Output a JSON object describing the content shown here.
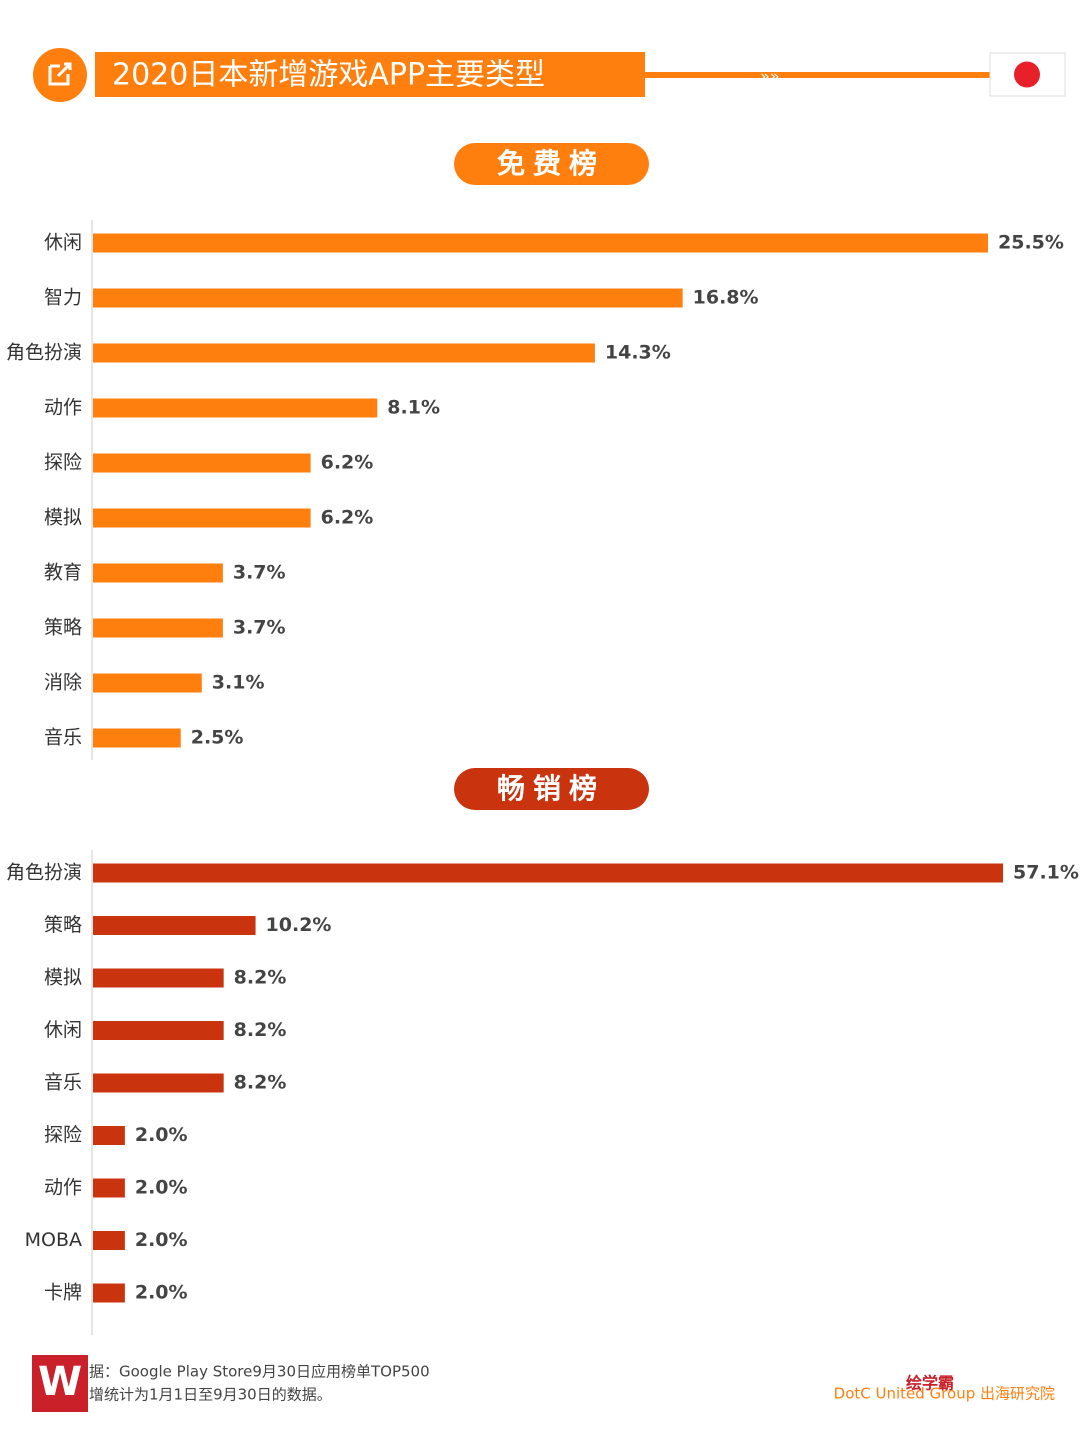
{
  "header": {
    "title": "2020日本新增游戏APP主要类型"
  },
  "chart_data": [
    {
      "type": "bar",
      "title": "免费榜",
      "color": "#ff7f0e",
      "categories": [
        "休闲",
        "智力",
        "角色扮演",
        "动作",
        "探险",
        "模拟",
        "教育",
        "策略",
        "消除",
        "音乐"
      ],
      "values": [
        25.5,
        16.8,
        14.3,
        8.1,
        6.2,
        6.2,
        3.7,
        3.7,
        3.1,
        2.5
      ],
      "value_labels": [
        "25.5%",
        "16.8%",
        "14.3%",
        "8.1%",
        "6.2%",
        "6.2%",
        "3.7%",
        "3.7%",
        "3.1%",
        "2.5%"
      ]
    },
    {
      "type": "bar",
      "title": "畅销榜",
      "color": "#c9340f",
      "categories": [
        "角色扮演",
        "策略",
        "模拟",
        "休闲",
        "音乐",
        "探险",
        "动作",
        "MOBA",
        "卡牌"
      ],
      "values": [
        57.1,
        10.2,
        8.2,
        8.2,
        8.2,
        2.0,
        2.0,
        2.0,
        2.0
      ],
      "value_labels": [
        "57.1%",
        "10.2%",
        "8.2%",
        "8.2%",
        "8.2%",
        "2.0%",
        "2.0%",
        "2.0%",
        "2.0%"
      ]
    }
  ],
  "footer": {
    "source": "据：Google Play Store9月30日应用榜单TOP500",
    "note": "增统计为1月1日至9月30日的数据。",
    "brand": "绘学霸",
    "org": "DotC United Group 出海研究院"
  }
}
